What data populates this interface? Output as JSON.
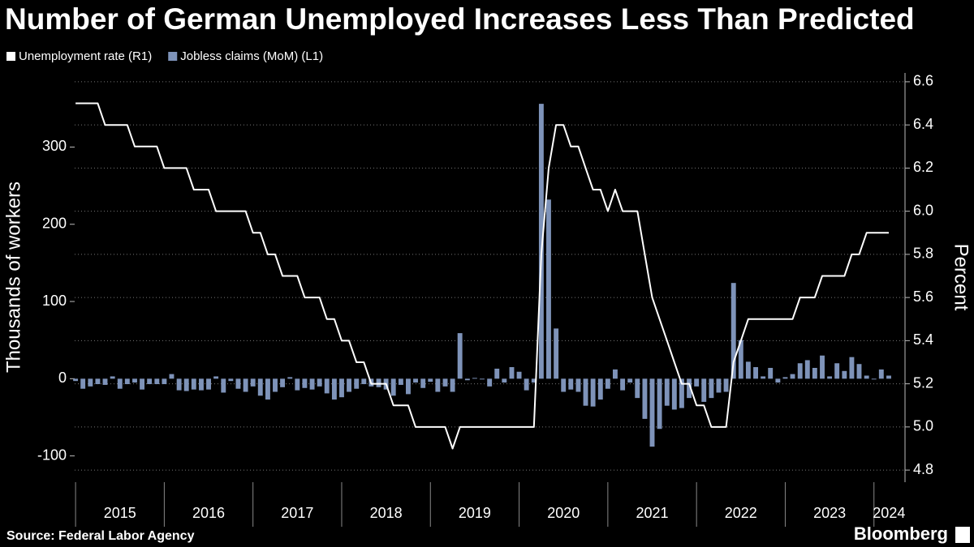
{
  "chart_data": {
    "type": "combo",
    "title": "Number of German Unemployed Increases Less Than Predicted",
    "source": "Source: Federal Labor Agency",
    "brand": "Bloomberg",
    "ylabel": "Thousands of workers",
    "y2label": "Percent",
    "x": [
      2015,
      2015.083,
      2015.167,
      2015.25,
      2015.333,
      2015.417,
      2015.5,
      2015.583,
      2015.667,
      2015.75,
      2015.833,
      2015.917,
      2016,
      2016.083,
      2016.167,
      2016.25,
      2016.333,
      2016.417,
      2016.5,
      2016.583,
      2016.667,
      2016.75,
      2016.833,
      2016.917,
      2017,
      2017.083,
      2017.167,
      2017.25,
      2017.333,
      2017.417,
      2017.5,
      2017.583,
      2017.667,
      2017.75,
      2017.833,
      2017.917,
      2018,
      2018.083,
      2018.167,
      2018.25,
      2018.333,
      2018.417,
      2018.5,
      2018.583,
      2018.667,
      2018.75,
      2018.833,
      2018.917,
      2019,
      2019.083,
      2019.167,
      2019.25,
      2019.333,
      2019.417,
      2019.5,
      2019.583,
      2019.667,
      2019.75,
      2019.833,
      2019.917,
      2020,
      2020.083,
      2020.167,
      2020.25,
      2020.333,
      2020.417,
      2020.5,
      2020.583,
      2020.667,
      2020.75,
      2020.833,
      2020.917,
      2021,
      2021.083,
      2021.167,
      2021.25,
      2021.333,
      2021.417,
      2021.5,
      2021.583,
      2021.667,
      2021.75,
      2021.833,
      2021.917,
      2022,
      2022.083,
      2022.167,
      2022.25,
      2022.333,
      2022.417,
      2022.5,
      2022.583,
      2022.667,
      2022.75,
      2022.833,
      2022.917,
      2023,
      2023.083,
      2023.167,
      2023.25,
      2023.333,
      2023.417,
      2023.5,
      2023.583,
      2023.667,
      2023.75,
      2023.833,
      2023.917,
      2024,
      2024.083,
      2024.167
    ],
    "xlim": [
      2014.99,
      2024.35
    ],
    "xticks": [
      {
        "value": 2015.5,
        "label": "2015"
      },
      {
        "value": 2016.5,
        "label": "2016"
      },
      {
        "value": 2017.5,
        "label": "2017"
      },
      {
        "value": 2018.5,
        "label": "2018"
      },
      {
        "value": 2019.5,
        "label": "2019"
      },
      {
        "value": 2020.5,
        "label": "2020"
      },
      {
        "value": 2021.5,
        "label": "2021"
      },
      {
        "value": 2022.5,
        "label": "2022"
      },
      {
        "value": 2023.5,
        "label": "2023"
      },
      {
        "value": 2024.17,
        "label": "2024"
      }
    ],
    "ylim": [
      -134,
      396
    ],
    "yticks": [
      -100,
      0,
      100,
      200,
      300
    ],
    "y2lim": [
      4.744,
      6.641
    ],
    "y2ticks": [
      4.8,
      {
        "value": 5,
        "label": "5.0"
      },
      5.2,
      5.4,
      5.6,
      5.8,
      {
        "value": 6,
        "label": "6.0"
      },
      6.2,
      6.4,
      6.6
    ],
    "grid": true,
    "legend": "top-left",
    "series": [
      {
        "name": "Unemployment rate (R1)",
        "type": "line",
        "axis": "y2",
        "color": "#ffffff",
        "values": [
          6.5,
          6.5,
          6.5,
          6.5,
          6.4,
          6.4,
          6.4,
          6.4,
          6.3,
          6.3,
          6.3,
          6.3,
          6.2,
          6.2,
          6.2,
          6.2,
          6.1,
          6.1,
          6.1,
          6.0,
          6.0,
          6.0,
          6.0,
          6.0,
          5.9,
          5.9,
          5.8,
          5.8,
          5.7,
          5.7,
          5.7,
          5.6,
          5.6,
          5.6,
          5.5,
          5.5,
          5.4,
          5.4,
          5.3,
          5.3,
          5.2,
          5.2,
          5.2,
          5.1,
          5.1,
          5.1,
          5.0,
          5.0,
          5.0,
          5.0,
          5.0,
          4.9,
          5.0,
          5.0,
          5.0,
          5.0,
          5.0,
          5.0,
          5.0,
          5.0,
          5.0,
          5.0,
          5.0,
          5.8,
          6.2,
          6.4,
          6.4,
          6.3,
          6.3,
          6.2,
          6.1,
          6.1,
          6.0,
          6.1,
          6.0,
          6.0,
          6.0,
          5.8,
          5.6,
          5.5,
          5.4,
          5.3,
          5.2,
          5.2,
          5.1,
          5.1,
          5.0,
          5.0,
          5.0,
          5.3,
          5.4,
          5.5,
          5.5,
          5.5,
          5.5,
          5.5,
          5.5,
          5.5,
          5.6,
          5.6,
          5.6,
          5.7,
          5.7,
          5.7,
          5.7,
          5.8,
          5.8,
          5.9,
          5.9,
          5.9,
          5.9
        ]
      },
      {
        "name": "Jobless claims (MoM) (L1)",
        "type": "bar",
        "axis": "y",
        "color": "#7e93b9",
        "values": [
          -3,
          -13,
          -10,
          -7,
          -8,
          3,
          -13,
          -7,
          -5,
          -14,
          -7,
          -7,
          -7,
          6,
          -15,
          -16,
          -14,
          -15,
          -14,
          3,
          -18,
          -3,
          -13,
          -17,
          -10,
          -22,
          -27,
          -17,
          -11,
          2,
          -15,
          -12,
          -14,
          -10,
          -19,
          -27,
          -24,
          -17,
          -13,
          -7,
          -10,
          -11,
          -14,
          -22,
          -8,
          -20,
          -5,
          -12,
          -4,
          -17,
          -10,
          -17,
          59,
          -2,
          1,
          -1,
          -10,
          13,
          -5,
          15,
          9,
          -15,
          -5,
          356,
          232,
          65,
          -17,
          -14,
          -17,
          -35,
          -36,
          -27,
          -13,
          12,
          -15,
          -5,
          -25,
          -52,
          -88,
          -65,
          -35,
          -40,
          -38,
          -25,
          -10,
          -30,
          -25,
          -18,
          -17,
          124,
          50,
          22,
          15,
          3,
          14,
          -5,
          2,
          6,
          20,
          24,
          14,
          30,
          3,
          20,
          10,
          28,
          19,
          4,
          -1,
          12,
          4
        ]
      }
    ]
  }
}
